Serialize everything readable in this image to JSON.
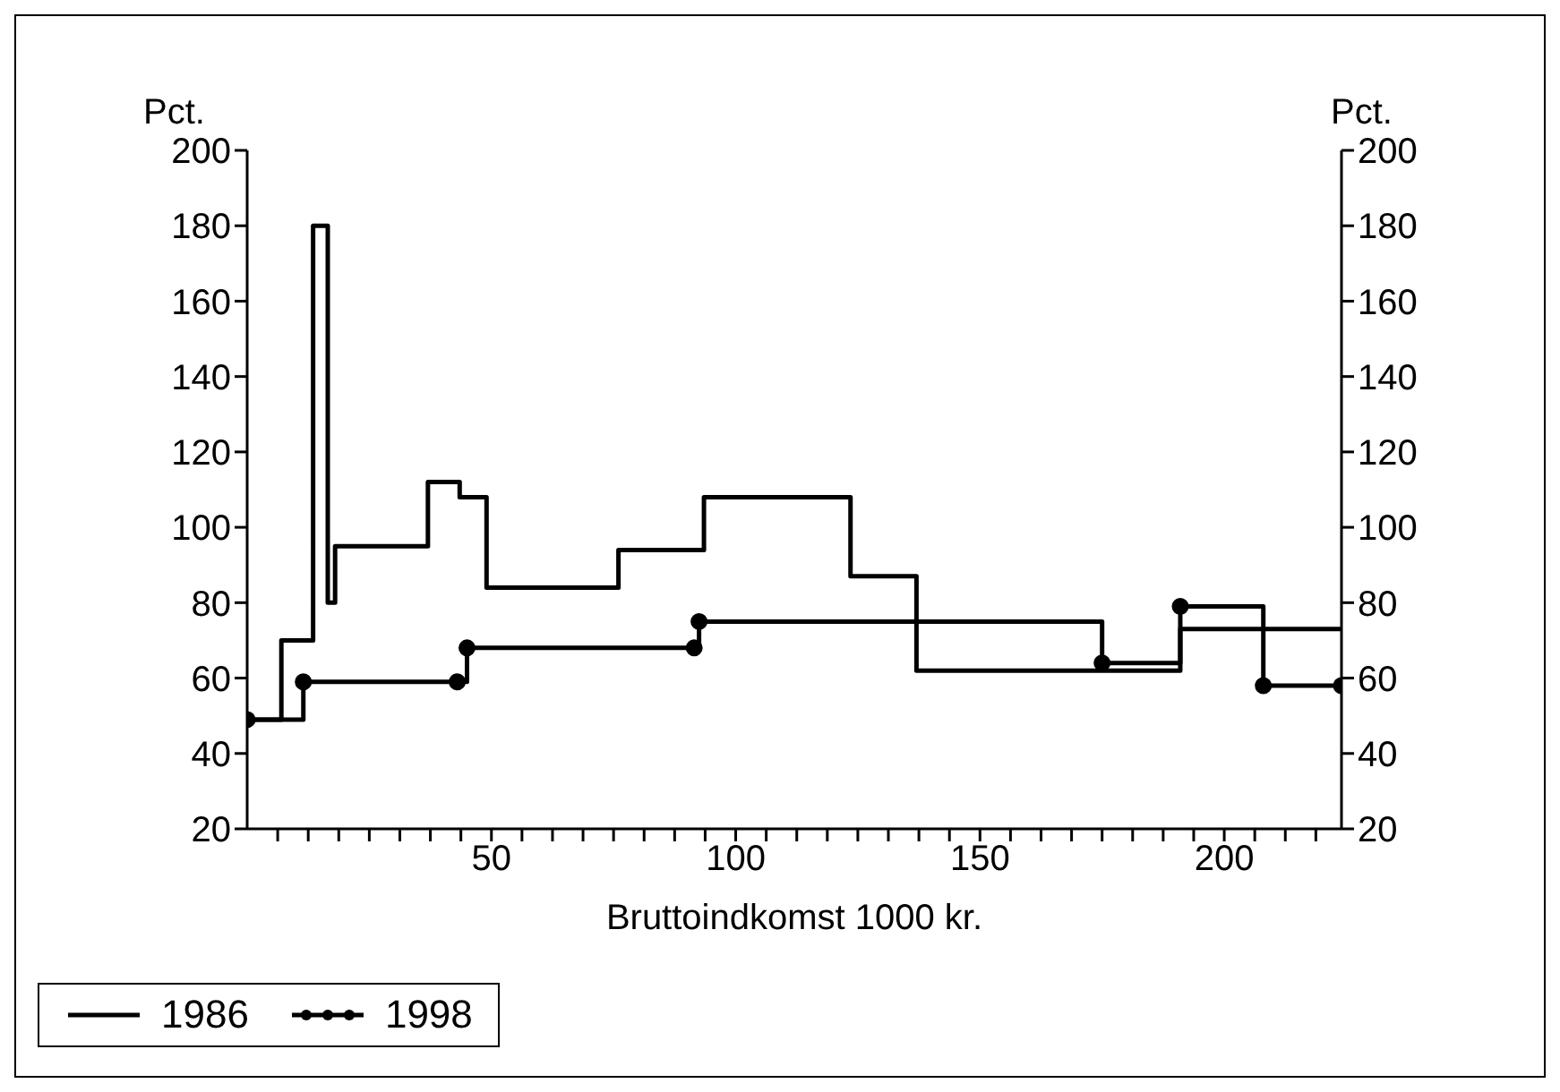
{
  "chart_data": {
    "type": "step",
    "xlabel": "Bruttoindkomst 1000 kr.",
    "ylabel": "Pct.",
    "y2label": "Pct.",
    "xlim": [
      0,
      224
    ],
    "xticks": [
      {
        "value": 6.25,
        "label": null
      },
      {
        "value": 12.5,
        "label": null
      },
      {
        "value": 18.75,
        "label": null
      },
      {
        "value": 25,
        "label": null
      },
      {
        "value": 31.25,
        "label": null
      },
      {
        "value": 37.5,
        "label": null
      },
      {
        "value": 43.75,
        "label": null
      },
      50,
      {
        "value": 56.25,
        "label": null
      },
      {
        "value": 62.5,
        "label": null
      },
      {
        "value": 68.75,
        "label": null
      },
      {
        "value": 75,
        "label": null
      },
      {
        "value": 81.25,
        "label": null
      },
      {
        "value": 87.5,
        "label": null
      },
      {
        "value": 93.75,
        "label": null
      },
      100,
      {
        "value": 106.25,
        "label": null
      },
      {
        "value": 112.5,
        "label": null
      },
      {
        "value": 118.75,
        "label": null
      },
      {
        "value": 125,
        "label": null
      },
      {
        "value": 131.25,
        "label": null
      },
      {
        "value": 137.5,
        "label": null
      },
      {
        "value": 143.75,
        "label": null
      },
      150,
      {
        "value": 156.25,
        "label": null
      },
      {
        "value": 162.5,
        "label": null
      },
      {
        "value": 168.75,
        "label": null
      },
      {
        "value": 175,
        "label": null
      },
      {
        "value": 181.25,
        "label": null
      },
      {
        "value": 187.5,
        "label": null
      },
      {
        "value": 193.75,
        "label": null
      },
      200,
      {
        "value": 206.25,
        "label": null
      },
      {
        "value": 212.5,
        "label": null
      },
      {
        "value": 218.75,
        "label": null
      }
    ],
    "ylim": [
      20,
      200
    ],
    "yticks": [
      20,
      40,
      60,
      80,
      100,
      120,
      140,
      160,
      180,
      200
    ],
    "y2lim": [
      20,
      200
    ],
    "y2ticks": [
      20,
      40,
      60,
      80,
      100,
      120,
      140,
      160,
      180,
      200
    ],
    "legend": "bottom left",
    "line_style": "solid",
    "series": [
      {
        "name": "1986",
        "color": "#000000",
        "marker": "none",
        "x": [
          0,
          7,
          13.5,
          16.5,
          18,
          37,
          43.5,
          49,
          76,
          93.5,
          123.5,
          137,
          191,
          224
        ],
        "values": [
          49,
          70,
          180,
          80,
          95,
          112,
          108,
          84,
          94,
          108,
          87,
          62,
          73,
          73
        ]
      },
      {
        "name": "1998",
        "color": "#000000",
        "marker": "circle",
        "x": [
          0,
          11.5,
          43,
          45,
          91.5,
          92.5,
          175,
          191,
          208,
          224
        ],
        "values": [
          49,
          59,
          59,
          68,
          68,
          75,
          64,
          79,
          58,
          58
        ]
      }
    ]
  }
}
